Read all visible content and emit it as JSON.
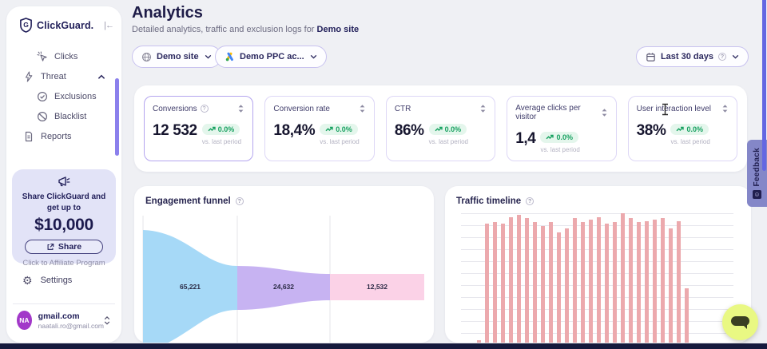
{
  "sidebar": {
    "logo_text": "ClickGuard.",
    "nav": [
      {
        "label": "Clicks",
        "icon": "cursor-click",
        "level": 1
      },
      {
        "label": "Threat",
        "icon": "lightning",
        "level": 0,
        "expanded": true
      },
      {
        "label": "Exclusions",
        "icon": "check-circle",
        "level": 1
      },
      {
        "label": "Blacklist",
        "icon": "block-circle",
        "level": 1
      },
      {
        "label": "Reports",
        "icon": "document",
        "level": 0
      }
    ],
    "promo": {
      "line1": "Share ClickGuard and",
      "line2": "get up to",
      "amount": "$10,000",
      "share_label": "Share",
      "footer": "Click to Affiliate Program"
    },
    "settings_label": "Settings",
    "user": {
      "initials": "NA",
      "name": "gmail.com",
      "email": "naatali.ro@gmail.com"
    }
  },
  "header": {
    "title": "Analytics",
    "subtitle_prefix": "Detailed analytics, traffic and exclusion logs for",
    "subtitle_target": "Demo site",
    "site_selector": "Demo site",
    "account_selector": "Demo PPC ac...",
    "date_range": "Last 30 days"
  },
  "kpis": [
    {
      "label": "Conversions",
      "value": "12 532",
      "change": "0.0%",
      "note": "vs. last period",
      "has_info": true,
      "selected": true
    },
    {
      "label": "Conversion rate",
      "value": "18,4%",
      "change": "0.0%",
      "note": "vs. last period",
      "has_info": false,
      "selected": false
    },
    {
      "label": "CTR",
      "value": "86%",
      "change": "0.0%",
      "note": "vs. last period",
      "has_info": false,
      "selected": false
    },
    {
      "label": "Average clicks per visitor",
      "value": "1,4",
      "change": "0.0%",
      "note": "vs. last period",
      "has_info": false,
      "selected": false
    },
    {
      "label": "User interaction level",
      "value": "38%",
      "change": "0.0%",
      "note": "vs. last period",
      "has_info": false,
      "selected": false
    }
  ],
  "chart_data": [
    {
      "type": "funnel",
      "title": "Engagement funnel",
      "stages": [
        {
          "label": "65,221",
          "value": 65221,
          "color": "#A6D9F7"
        },
        {
          "label": "24,632",
          "value": 24632,
          "color": "#C7B3F2"
        },
        {
          "label": "12,532",
          "value": 12532,
          "color": "#FBD2E7"
        }
      ]
    },
    {
      "type": "bar",
      "title": "Traffic timeline",
      "bar_color": "#ECA9AD",
      "values_pct": [
        2,
        92,
        93,
        92,
        97,
        99,
        96,
        93,
        90,
        93,
        85,
        88,
        96,
        93,
        95,
        97,
        92,
        93,
        100,
        96,
        93,
        94,
        95,
        96,
        88,
        94,
        42
      ]
    }
  ],
  "feedback_label": "Feedback",
  "colors": {
    "accent": "#6467E2",
    "navy": "#23215B",
    "promo_bg": "#E2E3F7",
    "badge_green_bg": "#E4F6EC",
    "badge_green_text": "#17A160",
    "funnel_blue": "#A6D9F7",
    "funnel_purple": "#C7B3F2",
    "funnel_pink": "#FBD2E7",
    "timeline_bar": "#ECA9AD",
    "chat_button": "#E9F883",
    "avatar_bg": "#A238C9"
  }
}
